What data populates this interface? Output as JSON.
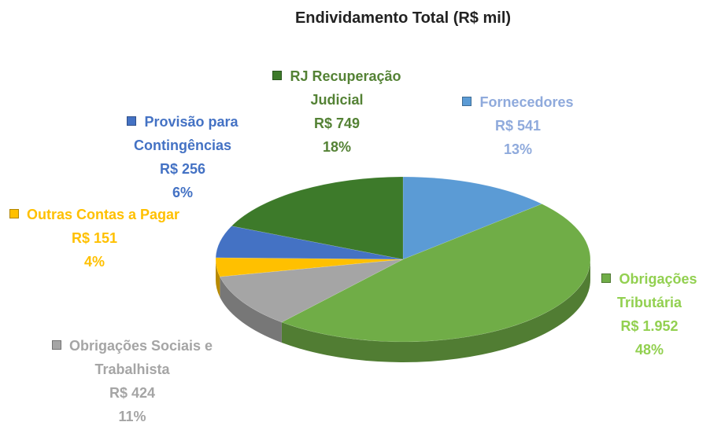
{
  "chart_data": {
    "type": "pie",
    "title": "Endividamento Total (R$ mil)",
    "categories": [
      "Fornecedores",
      "Obrigações Tributária",
      "Obrigações Sociais e Trabalhista",
      "Outras Contas a Pagar",
      "Provisão para Contingências",
      "RJ Recuperação Judicial"
    ],
    "values": [
      541,
      1952,
      424,
      151,
      256,
      749
    ],
    "value_labels": [
      "R$ 541",
      "R$ 1.952",
      "R$ 424",
      "R$ 151",
      "R$ 256",
      "R$ 749"
    ],
    "percent_labels": [
      "13%",
      "48%",
      "11%",
      "4%",
      "6%",
      "18%"
    ],
    "colors": [
      "#5b9bd5",
      "#70ad47",
      "#a5a5a5",
      "#ffc000",
      "#4472c4",
      "#3d7a2a"
    ],
    "label_colors": [
      "#8faadc",
      "#92d050",
      "#a5a5a5",
      "#ffc000",
      "#4472c4",
      "#548235"
    ]
  }
}
